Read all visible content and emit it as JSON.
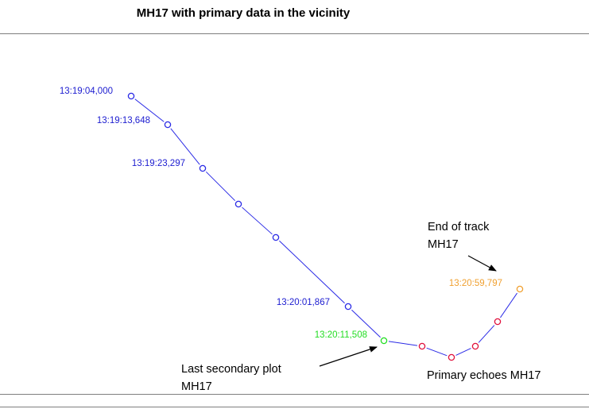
{
  "title": "MH17 with primary data in the vicinity",
  "colors": {
    "track": "#2a2ae6",
    "time_label": "#1c1cd0",
    "last_secondary": "#22dd22",
    "primary": "#e0103c",
    "end": "#f0a030",
    "annotation": "#000000"
  },
  "points": [
    {
      "label": "13:19:04,000",
      "kind": "secondary"
    },
    {
      "label": "13:19:13,648",
      "kind": "secondary"
    },
    {
      "label": "13:19:23,297",
      "kind": "secondary"
    },
    {
      "label": "",
      "kind": "secondary"
    },
    {
      "label": "",
      "kind": "secondary"
    },
    {
      "label": "13:20:01,867",
      "kind": "secondary"
    },
    {
      "label": "13:20:11,508",
      "kind": "last_secondary"
    },
    {
      "label": "",
      "kind": "primary"
    },
    {
      "label": "",
      "kind": "primary"
    },
    {
      "label": "",
      "kind": "primary"
    },
    {
      "label": "",
      "kind": "primary"
    },
    {
      "label": "13:20:59,797",
      "kind": "end"
    }
  ],
  "annotations": {
    "end_of_track": [
      "End of track",
      "MH17"
    ],
    "last_secondary": [
      "Last secondary plot",
      "MH17"
    ],
    "primary_echoes": [
      "Primary echoes MH17"
    ]
  }
}
